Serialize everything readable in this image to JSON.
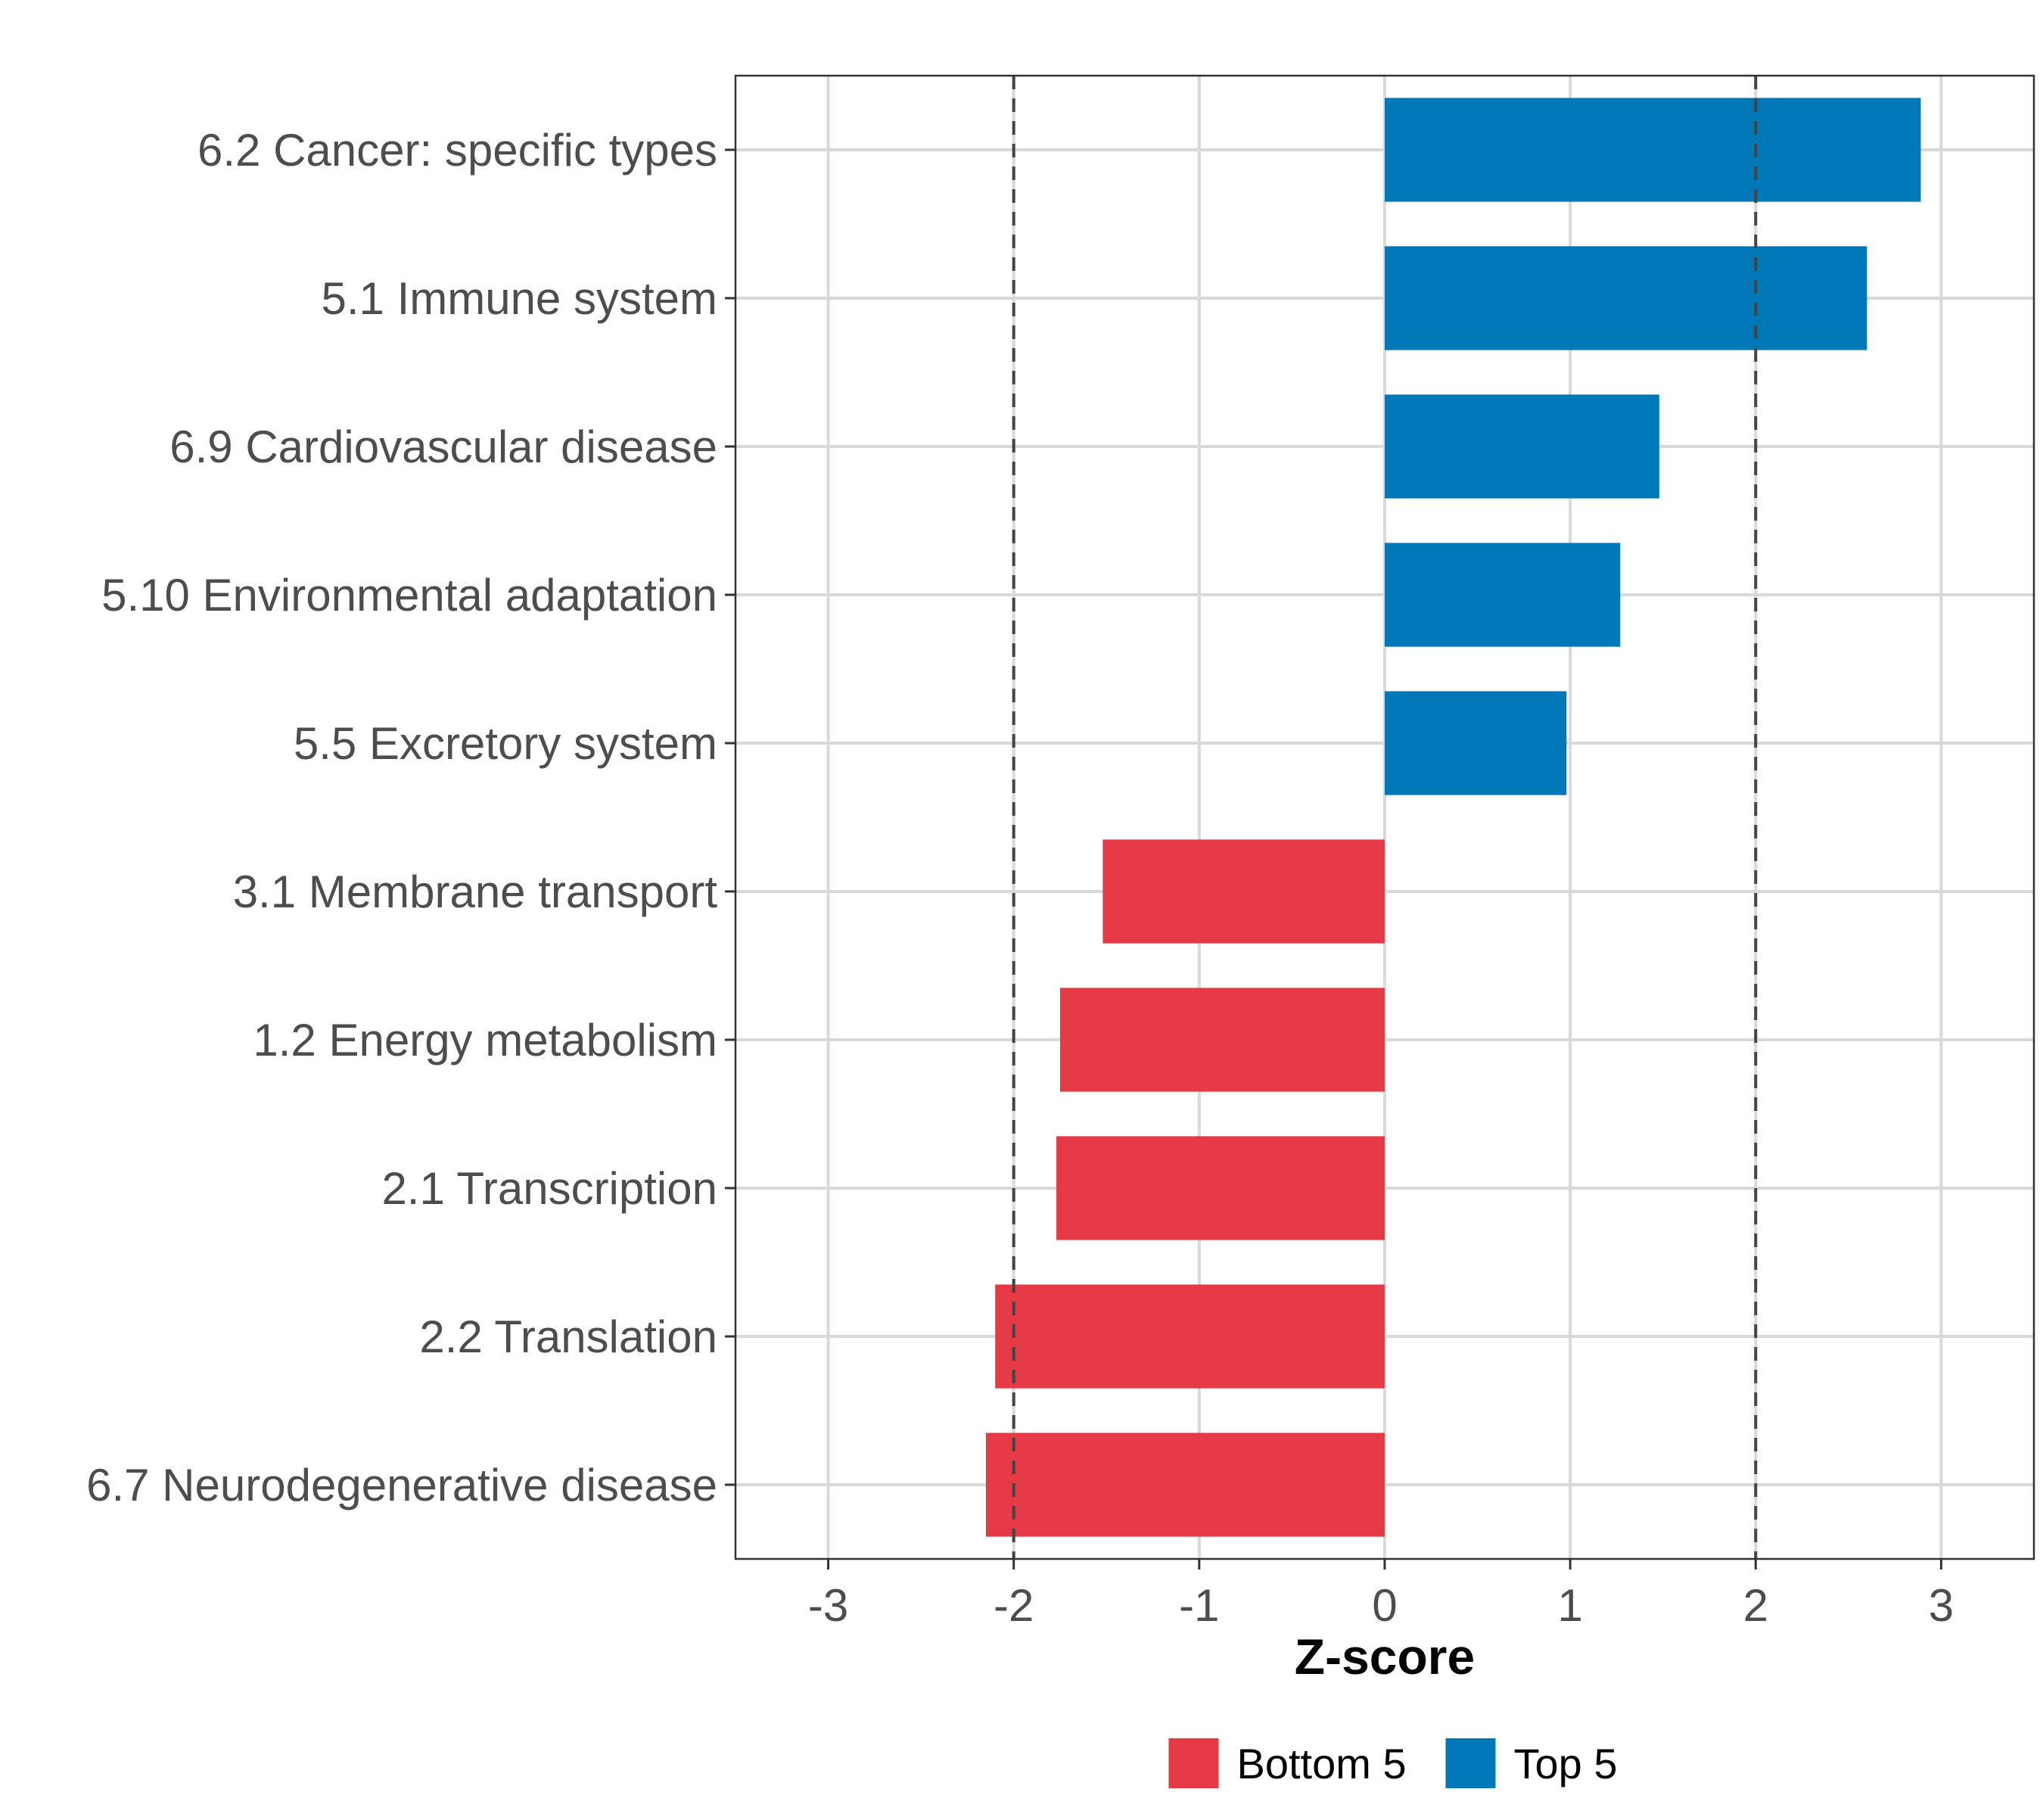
{
  "chart_data": {
    "type": "bar",
    "orientation": "horizontal",
    "title": "",
    "xlabel": "Z-score",
    "ylabel": "",
    "xlim": [
      -3.5,
      3.5
    ],
    "x_ticks": [
      -3,
      -2,
      -1,
      0,
      1,
      2,
      3
    ],
    "x_tick_labels": [
      "-3",
      "-2",
      "-1",
      "0",
      "1",
      "2",
      "3"
    ],
    "reference_lines": [
      -2,
      2
    ],
    "grid": true,
    "legend_position": "bottom",
    "legend": [
      {
        "name": "Bottom 5",
        "color": "#E63946"
      },
      {
        "name": "Top 5",
        "color": "#0077B6"
      }
    ],
    "categories": [
      "6.2 Cancer: specific types",
      "5.1 Immune system",
      "6.9 Cardiovascular disease",
      "5.10 Environmental adaptation",
      "5.5 Excretory system",
      "3.1 Membrane transport",
      "1.2 Energy metabolism",
      "2.1 Transcription",
      "2.2 Translation",
      "6.7 Neurodegenerative disease"
    ],
    "values": [
      2.89,
      2.6,
      1.48,
      1.27,
      0.98,
      -1.52,
      -1.75,
      -1.77,
      -2.1,
      -2.15
    ],
    "groups": [
      "Top 5",
      "Top 5",
      "Top 5",
      "Top 5",
      "Top 5",
      "Bottom 5",
      "Bottom 5",
      "Bottom 5",
      "Bottom 5",
      "Bottom 5"
    ]
  }
}
